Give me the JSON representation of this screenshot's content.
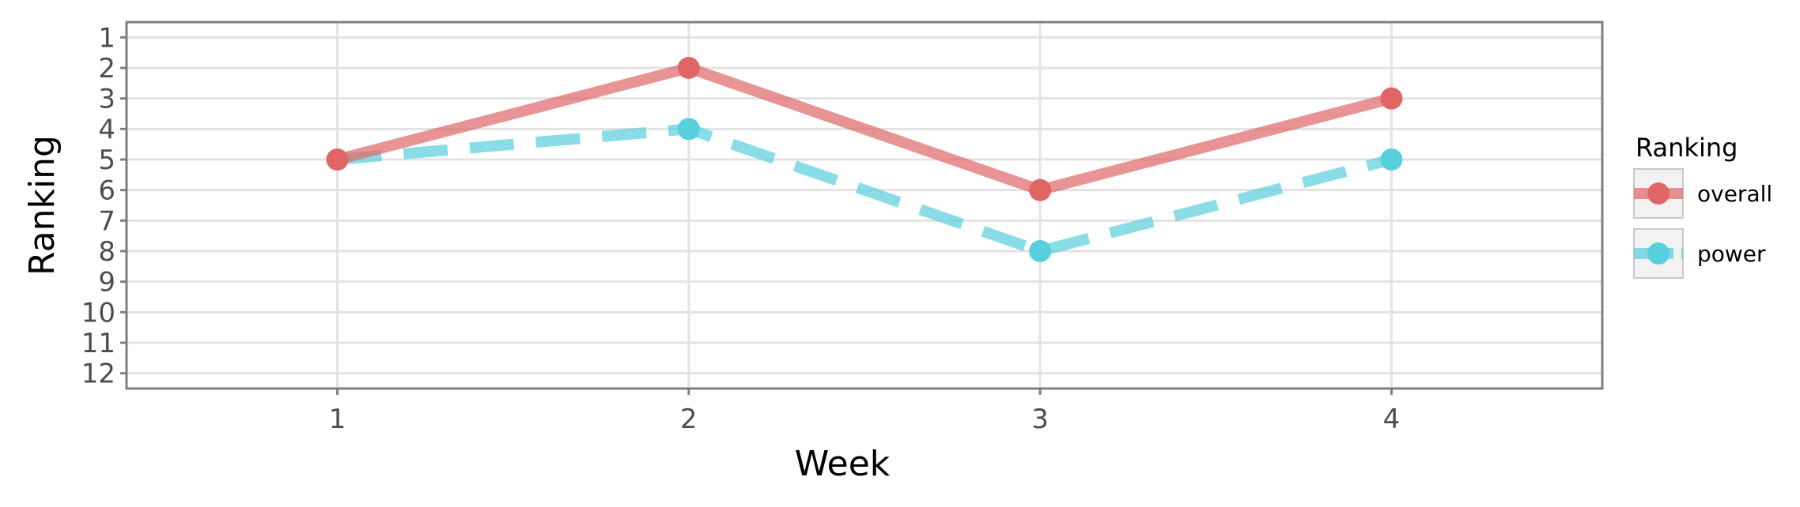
{
  "chart_data": {
    "type": "line",
    "xlabel": "Week",
    "ylabel": "Ranking",
    "x": [
      1,
      2,
      3,
      4
    ],
    "xlim": [
      0.4,
      4.6
    ],
    "ylim": [
      12.5,
      0.5
    ],
    "y_reversed": true,
    "x_ticks": [
      "1",
      "2",
      "3",
      "4"
    ],
    "y_ticks": [
      "1",
      "2",
      "3",
      "4",
      "5",
      "6",
      "7",
      "8",
      "9",
      "10",
      "11",
      "12"
    ],
    "grid": true,
    "legend": {
      "title": "Ranking",
      "position": "right"
    },
    "series": [
      {
        "name": "overall",
        "values": [
          5,
          2,
          6,
          3
        ],
        "color": "#e06666",
        "line_style": "solid"
      },
      {
        "name": "power",
        "values": [
          5,
          4,
          8,
          5
        ],
        "color": "#58cfdc",
        "line_style": "dashed"
      }
    ]
  }
}
